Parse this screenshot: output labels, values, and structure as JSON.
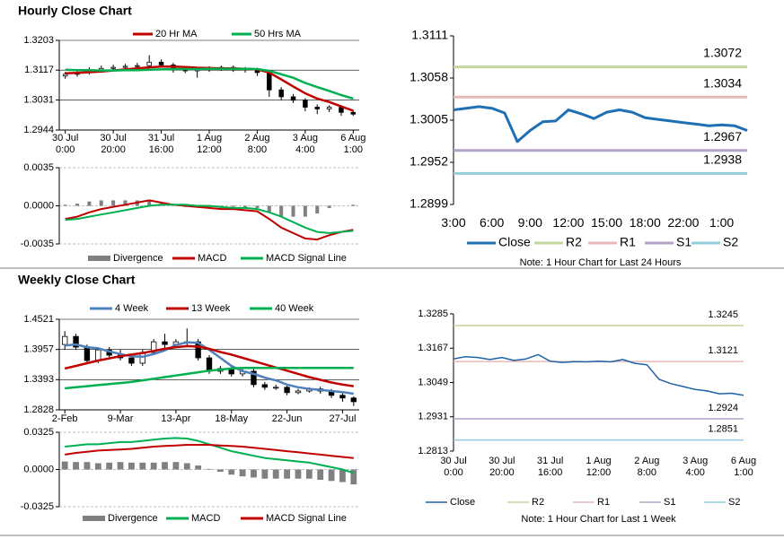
{
  "sections": [
    {
      "title": "Hourly Close Chart"
    },
    {
      "title": "Weekly Close Chart"
    }
  ],
  "chart_data": [
    {
      "type": "candlestick",
      "categories": [
        "30 Jul\n0:00",
        null,
        null,
        null,
        "30 Jul\n20:00",
        null,
        null,
        null,
        "31 Jul\n16:00",
        null,
        null,
        null,
        "1 Aug\n12:00",
        null,
        null,
        null,
        "2 Aug\n8:00",
        null,
        null,
        null,
        "3 Aug\n4:00",
        null,
        null,
        null,
        "6 Aug\n1:00"
      ],
      "open": [
        1.31,
        1.3105,
        1.311,
        1.3118,
        1.3122,
        1.3125,
        1.3128,
        1.313,
        1.314,
        1.3132,
        1.3118,
        1.3115,
        1.312,
        1.3122,
        1.3125,
        1.312,
        1.3118,
        1.311,
        1.306,
        1.304,
        1.303,
        1.301,
        1.3005,
        1.301,
        1.2995
      ],
      "high": [
        1.3112,
        1.3116,
        1.3125,
        1.313,
        1.3133,
        1.3135,
        1.3138,
        1.316,
        1.3148,
        1.3138,
        1.3125,
        1.3126,
        1.3128,
        1.313,
        1.313,
        1.3126,
        1.3124,
        1.3115,
        1.3068,
        1.3048,
        1.3036,
        1.3018,
        1.3015,
        1.3016,
        1.3
      ],
      "low": [
        1.3092,
        1.3098,
        1.3104,
        1.311,
        1.3116,
        1.3118,
        1.3122,
        1.3124,
        1.3125,
        1.311,
        1.3108,
        1.3095,
        1.3112,
        1.3115,
        1.3112,
        1.311,
        1.31,
        1.304,
        1.303,
        1.3022,
        1.2998,
        1.299,
        1.2996,
        1.2985,
        1.2985
      ],
      "close": [
        1.3105,
        1.311,
        1.3118,
        1.3122,
        1.3125,
        1.3128,
        1.313,
        1.314,
        1.3132,
        1.3118,
        1.3115,
        1.312,
        1.3122,
        1.3125,
        1.312,
        1.3118,
        1.311,
        1.306,
        1.304,
        1.303,
        1.301,
        1.3005,
        1.301,
        1.2995,
        1.299
      ],
      "series": [
        {
          "name": "20 Hr MA",
          "color": "#c00000",
          "values": [
            1.3108,
            1.3109,
            1.3111,
            1.3113,
            1.3116,
            1.3119,
            1.3122,
            1.3125,
            1.3127,
            1.3127,
            1.3126,
            1.3124,
            1.3123,
            1.3122,
            1.3122,
            1.3121,
            1.3119,
            1.311,
            1.309,
            1.307,
            1.305,
            1.3035,
            1.3025,
            1.3012,
            1.3
          ]
        },
        {
          "name": "50 Hrs MA",
          "color": "#00b050",
          "values": [
            1.3118,
            1.3117,
            1.3117,
            1.3116,
            1.3116,
            1.3117,
            1.3117,
            1.3118,
            1.3119,
            1.312,
            1.312,
            1.312,
            1.3121,
            1.3121,
            1.3121,
            1.3121,
            1.312,
            1.3115,
            1.3105,
            1.3095,
            1.308,
            1.3068,
            1.3057,
            1.3045,
            1.3035
          ]
        }
      ],
      "ylim": [
        1.2944,
        1.3203
      ],
      "yticks": [
        1.2944,
        1.3031,
        1.3117,
        1.3203
      ],
      "grid": true
    },
    {
      "type": "combo",
      "series": [
        {
          "name": "Divergence",
          "color": "#808080",
          "kind": "bar",
          "values": [
            0.0001,
            0.0002,
            0.0004,
            0.0005,
            0.0005,
            0.0005,
            0.0005,
            0.0005,
            0.0002,
            0.0,
            -0.0001,
            -0.0001,
            -0.0002,
            -0.0002,
            -0.0001,
            -0.0002,
            -0.0002,
            -0.0006,
            -0.001,
            -0.001,
            -0.001,
            -0.0007,
            -0.0002,
            0.0,
            0.0001
          ]
        },
        {
          "name": "MACD",
          "color": "#c00000",
          "kind": "line",
          "values": [
            -0.0012,
            -0.001,
            -0.0006,
            -0.0003,
            -0.0001,
            0.0001,
            0.0003,
            0.0005,
            0.0003,
            0.0001,
            0.0,
            -0.0001,
            -0.0002,
            -0.0003,
            -0.0003,
            -0.0004,
            -0.0005,
            -0.0012,
            -0.002,
            -0.0025,
            -0.003,
            -0.0031,
            -0.0027,
            -0.0024,
            -0.0022
          ]
        },
        {
          "name": "MACD Signal Line",
          "color": "#00b050",
          "kind": "line",
          "values": [
            -0.0013,
            -0.0012,
            -0.001,
            -0.0008,
            -0.0006,
            -0.0004,
            -0.0002,
            0.0,
            0.0001,
            0.0001,
            0.0001,
            0.0,
            0.0,
            -0.0001,
            -0.0002,
            -0.0002,
            -0.0003,
            -0.0006,
            -0.001,
            -0.0015,
            -0.002,
            -0.0024,
            -0.0025,
            -0.0024,
            -0.0023
          ]
        }
      ],
      "ylim": [
        -0.0035,
        0.0035
      ],
      "yticks": [
        -0.0035,
        {
          "value": 0,
          "label": "0.0000"
        },
        0.0035
      ],
      "grid": true
    },
    {
      "type": "line",
      "categories": [
        "3:00",
        null,
        null,
        "6:00",
        null,
        null,
        "9:00",
        null,
        null,
        "12:00",
        null,
        null,
        "15:00",
        null,
        null,
        "18:00",
        null,
        null,
        "22:00",
        null,
        null,
        "1:00",
        null,
        null
      ],
      "series": [
        {
          "name": "Close",
          "color": "#1f6fb4",
          "values": [
            1.3018,
            1.302,
            1.3022,
            1.302,
            1.3014,
            1.2978,
            1.2992,
            1.3003,
            1.3004,
            1.3018,
            1.3013,
            1.3007,
            1.3015,
            1.3018,
            1.3015,
            1.3008,
            1.3006,
            1.3004,
            1.3002,
            1.3,
            1.2998,
            1.2999,
            1.2998,
            1.2992
          ]
        }
      ],
      "levels": [
        {
          "name": "R2",
          "color": "#c3d69b",
          "value": 1.3072
        },
        {
          "name": "R1",
          "color": "#e6b9b8",
          "value": 1.3034
        },
        {
          "name": "S1",
          "color": "#b3a2c7",
          "value": 1.2967
        },
        {
          "name": "S2",
          "color": "#93cddd",
          "value": 1.2938
        }
      ],
      "ylim": [
        1.2899,
        1.3111
      ],
      "yticks": [
        1.2899,
        1.2952,
        1.3005,
        1.3058,
        1.3111
      ],
      "note": "Note: 1 Hour Chart for Last 24 Hours"
    },
    {
      "type": "candlestick",
      "categories": [
        "2-Feb",
        null,
        null,
        null,
        null,
        "9-Mar",
        null,
        null,
        null,
        null,
        "13-Apr",
        null,
        null,
        null,
        null,
        "18-May",
        null,
        null,
        null,
        null,
        "22-Jun",
        null,
        null,
        null,
        null,
        "27-Jul",
        null
      ],
      "open": [
        1.405,
        1.42,
        1.4,
        1.375,
        1.395,
        1.385,
        1.38,
        1.37,
        1.39,
        1.41,
        1.405,
        1.41,
        1.41,
        1.38,
        1.355,
        1.36,
        1.35,
        1.355,
        1.33,
        1.325,
        1.325,
        1.315,
        1.318,
        1.322,
        1.318,
        1.31,
        1.305
      ],
      "high": [
        1.43,
        1.425,
        1.405,
        1.4,
        1.4,
        1.395,
        1.385,
        1.395,
        1.415,
        1.425,
        1.415,
        1.435,
        1.415,
        1.385,
        1.365,
        1.365,
        1.36,
        1.36,
        1.335,
        1.33,
        1.33,
        1.322,
        1.325,
        1.326,
        1.322,
        1.315,
        1.308
      ],
      "low": [
        1.395,
        1.395,
        1.37,
        1.37,
        1.38,
        1.375,
        1.365,
        1.365,
        1.385,
        1.395,
        1.4,
        1.4,
        1.375,
        1.35,
        1.35,
        1.345,
        1.345,
        1.325,
        1.32,
        1.32,
        1.31,
        1.312,
        1.315,
        1.313,
        1.305,
        1.298,
        1.29
      ],
      "close": [
        1.42,
        1.4,
        1.375,
        1.395,
        1.385,
        1.38,
        1.37,
        1.39,
        1.41,
        1.405,
        1.41,
        1.41,
        1.38,
        1.355,
        1.36,
        1.35,
        1.355,
        1.33,
        1.325,
        1.325,
        1.315,
        1.318,
        1.322,
        1.318,
        1.31,
        1.305,
        1.298
      ],
      "series": [
        {
          "name": "4 Week",
          "color": "#4f81bd",
          "values": [
            1.403,
            1.405,
            1.4,
            1.398,
            1.392,
            1.387,
            1.383,
            1.382,
            1.387,
            1.394,
            1.404,
            1.409,
            1.408,
            1.395,
            1.38,
            1.365,
            1.355,
            1.35,
            1.343,
            1.338,
            1.33,
            1.325,
            1.322,
            1.32,
            1.318,
            1.316,
            1.313
          ]
        },
        {
          "name": "13 Week",
          "color": "#c00000",
          "values": [
            1.36,
            1.365,
            1.37,
            1.375,
            1.379,
            1.383,
            1.386,
            1.389,
            1.393,
            1.397,
            1.4,
            1.402,
            1.401,
            1.397,
            1.391,
            1.386,
            1.38,
            1.374,
            1.368,
            1.362,
            1.356,
            1.35,
            1.344,
            1.339,
            1.334,
            1.33,
            1.327
          ]
        },
        {
          "name": "40 Week",
          "color": "#00b050",
          "values": [
            1.323,
            1.325,
            1.327,
            1.329,
            1.331,
            1.333,
            1.335,
            1.338,
            1.341,
            1.344,
            1.347,
            1.35,
            1.353,
            1.356,
            1.358,
            1.36,
            1.361,
            1.361,
            1.361,
            1.361,
            1.361,
            1.361,
            1.361,
            1.361,
            1.361,
            1.361,
            1.361
          ]
        }
      ],
      "ylim": [
        1.2828,
        1.4521
      ],
      "yticks": [
        1.2828,
        1.3393,
        1.3957,
        1.4521
      ],
      "grid": true
    },
    {
      "type": "combo",
      "series": [
        {
          "name": "Divergence",
          "color": "#808080",
          "kind": "bar",
          "values": [
            0.007,
            0.0065,
            0.0065,
            0.0055,
            0.006,
            0.0065,
            0.006,
            0.006,
            0.006,
            0.0065,
            0.0065,
            0.0055,
            0.0035,
            0.0005,
            -0.002,
            -0.0045,
            -0.006,
            -0.007,
            -0.008,
            -0.008,
            -0.008,
            -0.008,
            -0.008,
            -0.009,
            -0.01,
            -0.011,
            -0.013
          ]
        },
        {
          "name": "MACD",
          "color": "#00b050",
          "kind": "line",
          "values": [
            0.02,
            0.021,
            0.022,
            0.022,
            0.023,
            0.024,
            0.024,
            0.025,
            0.026,
            0.027,
            0.0275,
            0.027,
            0.025,
            0.022,
            0.019,
            0.016,
            0.014,
            0.012,
            0.01,
            0.009,
            0.008,
            0.007,
            0.006,
            0.004,
            0.002,
            0.0,
            -0.003
          ]
        },
        {
          "name": "MACD Signal Line",
          "color": "#c00000",
          "kind": "line",
          "values": [
            0.013,
            0.0145,
            0.0155,
            0.0165,
            0.017,
            0.0175,
            0.018,
            0.019,
            0.02,
            0.0205,
            0.021,
            0.0215,
            0.0215,
            0.0215,
            0.021,
            0.0205,
            0.02,
            0.019,
            0.018,
            0.017,
            0.016,
            0.015,
            0.014,
            0.013,
            0.012,
            0.011,
            0.01
          ]
        }
      ],
      "ylim": [
        -0.0325,
        0.0325
      ],
      "yticks": [
        -0.0325,
        {
          "value": 0,
          "label": "0.0000"
        },
        0.0325
      ],
      "grid": true
    },
    {
      "type": "line",
      "categories": [
        "30 Jul\n0:00",
        null,
        null,
        null,
        "30 Jul\n20:00",
        null,
        null,
        null,
        "31 Jul\n16:00",
        null,
        null,
        null,
        "1 Aug\n12:00",
        null,
        null,
        null,
        "2 Aug\n8:00",
        null,
        null,
        null,
        "3 Aug\n4:00",
        null,
        null,
        null,
        "6 Aug\n1:00"
      ],
      "series": [
        {
          "name": "Close",
          "color": "#1f63a6",
          "values": [
            1.313,
            1.3138,
            1.3135,
            1.3128,
            1.3135,
            1.3125,
            1.313,
            1.3145,
            1.3122,
            1.3118,
            1.3121,
            1.312,
            1.3122,
            1.312,
            1.3128,
            1.3115,
            1.311,
            1.306,
            1.3045,
            1.3035,
            1.3025,
            1.302,
            1.301,
            1.3012,
            1.3005
          ]
        }
      ],
      "levels": [
        {
          "name": "R2",
          "color": "#c3d69b",
          "value": 1.3245
        },
        {
          "name": "R1",
          "color": "#e6b9b8",
          "value": 1.3121
        },
        {
          "name": "S1",
          "color": "#b3a2c7",
          "value": 1.2924
        },
        {
          "name": "S2",
          "color": "#93cddd",
          "value": 1.2851
        }
      ],
      "ylim": [
        1.2813,
        1.3285
      ],
      "yticks": [
        1.2813,
        1.2931,
        1.3049,
        1.3167,
        1.3285
      ],
      "note": "Note: 1 Hour Chart for Last 1 Week"
    }
  ]
}
